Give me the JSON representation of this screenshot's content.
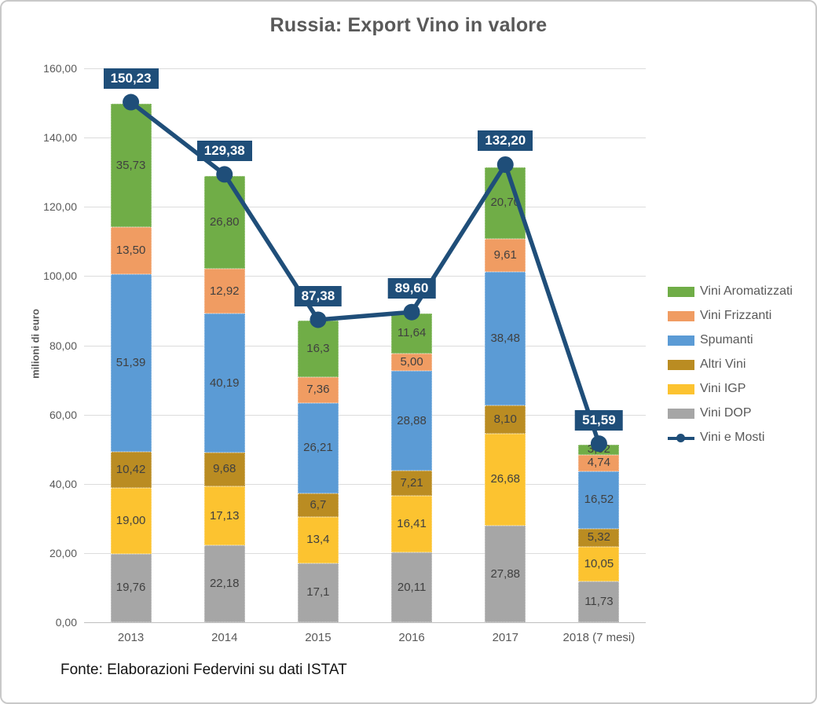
{
  "source_note": "Fonte: Elaborazioni Federvini su dati ISTAT",
  "colors": {
    "accent_navy": "#1F4E79",
    "grid": "#DCDCDC",
    "axis": "#BFBFBF",
    "title_text": "#595959"
  },
  "chart_data": {
    "type": "bar",
    "stacked": true,
    "title": "Russia: Export Vino in valore",
    "xlabel": "",
    "ylabel": "milioni di euro",
    "ylim": [
      0,
      160
    ],
    "ytick_step": 20,
    "ytick_labels": [
      "0,00",
      "20,00",
      "40,00",
      "60,00",
      "80,00",
      "100,00",
      "120,00",
      "140,00",
      "160,00"
    ],
    "grid": true,
    "legend_position": "right",
    "categories": [
      "2013",
      "2014",
      "2015",
      "2016",
      "2017",
      "2018 (7 mesi)"
    ],
    "series": [
      {
        "name": "Vini DOP",
        "color": "#A6A6A6",
        "values": [
          19.76,
          22.18,
          17.1,
          20.11,
          27.88,
          11.73
        ],
        "labels": [
          "19,76",
          "22,18",
          "17,1",
          "20,11",
          "27,88",
          "11,73"
        ]
      },
      {
        "name": "Vini IGP",
        "color": "#FCC330",
        "values": [
          19.0,
          17.13,
          13.4,
          16.41,
          26.68,
          10.05
        ],
        "labels": [
          "19,00",
          "17,13",
          "13,4",
          "16,41",
          "26,68",
          "10,05"
        ]
      },
      {
        "name": "Altri Vini",
        "color": "#BA8C22",
        "values": [
          10.42,
          9.68,
          6.7,
          7.21,
          8.1,
          5.32
        ],
        "labels": [
          "10,42",
          "9,68",
          "6,7",
          "7,21",
          "8,10",
          "5,32"
        ]
      },
      {
        "name": "Spumanti",
        "color": "#5B9BD5",
        "values": [
          51.39,
          40.19,
          26.21,
          28.88,
          38.48,
          16.52
        ],
        "labels": [
          "51,39",
          "40,19",
          "26,21",
          "28,88",
          "38,48",
          "16,52"
        ]
      },
      {
        "name": "Vini Frizzanti",
        "color": "#F09C62",
        "values": [
          13.5,
          12.92,
          7.36,
          5.0,
          9.61,
          4.74
        ],
        "labels": [
          "13,50",
          "12,92",
          "7,36",
          "5,00",
          "9,61",
          "4,74"
        ]
      },
      {
        "name": "Vini Aromatizzati",
        "color": "#70AD47",
        "values": [
          35.73,
          26.8,
          16.3,
          11.64,
          20.7,
          3.02
        ],
        "labels": [
          "35,73",
          "26,80",
          "16,3",
          "11,64",
          "20,70",
          "3,02"
        ]
      }
    ],
    "line_series": {
      "name": "Vini e Mosti",
      "color": "#1F4E79",
      "values": [
        150.23,
        129.38,
        87.38,
        89.6,
        132.2,
        51.59
      ],
      "labels": [
        "150,23",
        "129,38",
        "87,38",
        "89,60",
        "132,20",
        "51,59"
      ]
    },
    "legend_order": [
      "Vini Aromatizzati",
      "Vini Frizzanti",
      "Spumanti",
      "Altri Vini",
      "Vini IGP",
      "Vini DOP",
      "Vini e Mosti"
    ]
  }
}
